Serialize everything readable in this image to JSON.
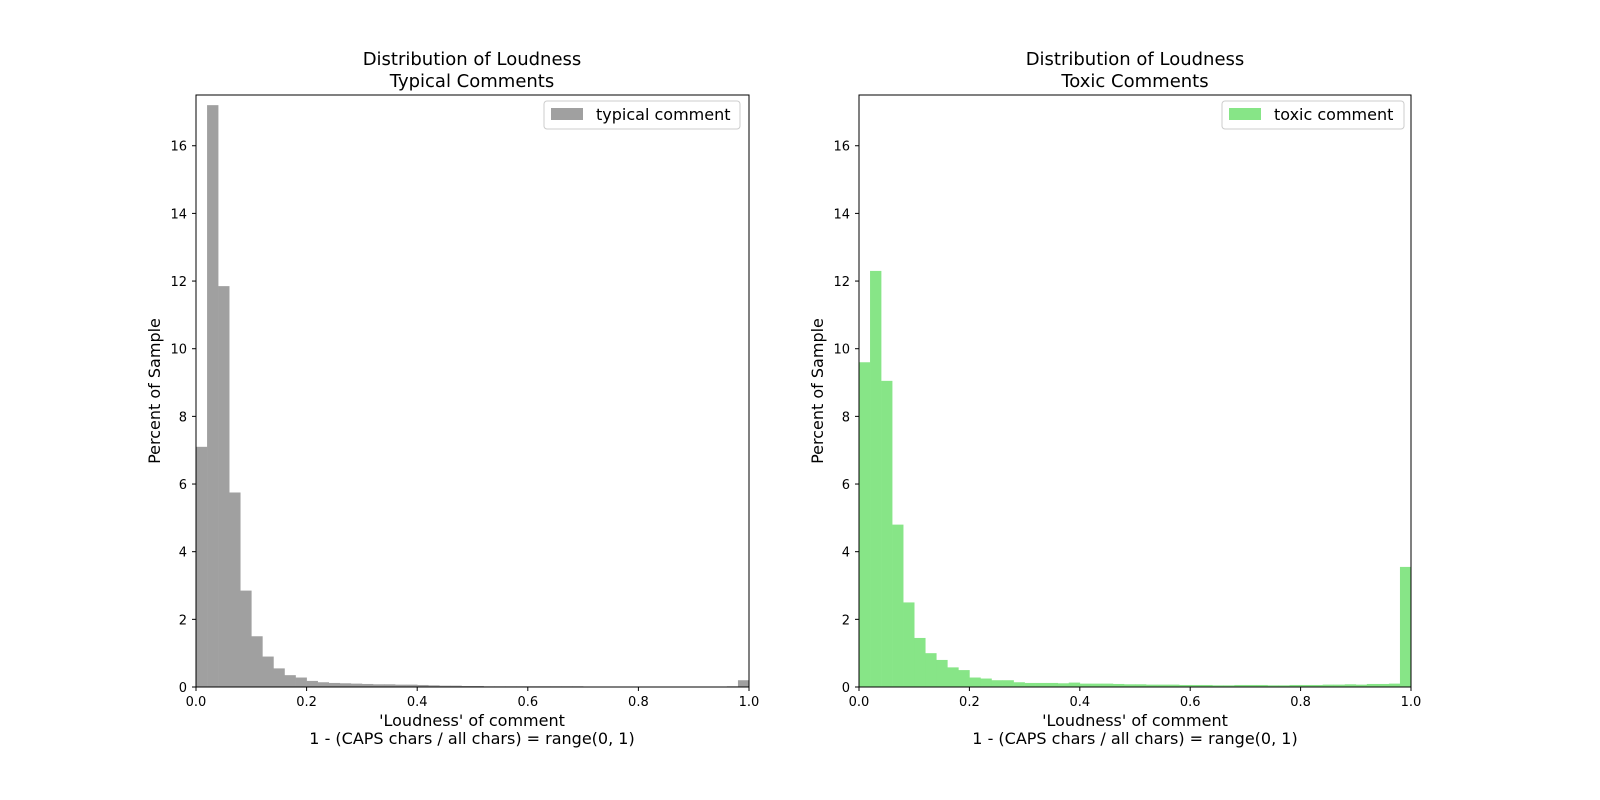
{
  "colors": {
    "typical": "#a0a0a0",
    "toxic": "#87e587",
    "axis": "#000000",
    "legend_border": "#cccccc"
  },
  "chart_data": [
    {
      "type": "bar",
      "title": "Distribution of Loudness\nTypical Comments",
      "xlabel": "'Loudness' of comment\n1 - (CAPS chars / all chars) = range(0, 1)",
      "ylabel": "Percent of Sample",
      "xlim": [
        0,
        1
      ],
      "ylim": [
        0,
        17.5
      ],
      "xticks": [
        "0.0",
        "0.2",
        "0.4",
        "0.6",
        "0.8",
        "1.0"
      ],
      "yticks": [
        "0",
        "2",
        "4",
        "6",
        "8",
        "10",
        "12",
        "14",
        "16"
      ],
      "grid": false,
      "legend_position": "top-right",
      "bin_width": 0.02,
      "series": [
        {
          "name": "typical comment",
          "color": "#a0a0a0",
          "values": [
            7.1,
            17.2,
            11.85,
            5.75,
            2.85,
            1.5,
            0.9,
            0.55,
            0.35,
            0.28,
            0.18,
            0.14,
            0.12,
            0.11,
            0.1,
            0.09,
            0.08,
            0.08,
            0.07,
            0.07,
            0.06,
            0.05,
            0.04,
            0.04,
            0.03,
            0.03,
            0.02,
            0.02,
            0.02,
            0.02,
            0.02,
            0.02,
            0.02,
            0.02,
            0.02,
            0.01,
            0.01,
            0.01,
            0.01,
            0.01,
            0.01,
            0.01,
            0.01,
            0.01,
            0.01,
            0.01,
            0.01,
            0.01,
            0.02,
            0.2
          ]
        }
      ]
    },
    {
      "type": "bar",
      "title": "Distribution of Loudness\nToxic Comments",
      "xlabel": "'Loudness' of comment\n1 - (CAPS chars / all chars) = range(0, 1)",
      "ylabel": "Percent of Sample",
      "xlim": [
        0,
        1
      ],
      "ylim": [
        0,
        17.5
      ],
      "xticks": [
        "0.0",
        "0.2",
        "0.4",
        "0.6",
        "0.8",
        "1.0"
      ],
      "yticks": [
        "0",
        "2",
        "4",
        "6",
        "8",
        "10",
        "12",
        "14",
        "16"
      ],
      "grid": false,
      "legend_position": "top-right",
      "bin_width": 0.02,
      "series": [
        {
          "name": "toxic comment",
          "color": "#87e587",
          "values": [
            9.6,
            12.3,
            9.05,
            4.8,
            2.5,
            1.45,
            1.0,
            0.8,
            0.58,
            0.5,
            0.28,
            0.25,
            0.2,
            0.2,
            0.14,
            0.12,
            0.12,
            0.12,
            0.11,
            0.13,
            0.1,
            0.1,
            0.1,
            0.09,
            0.08,
            0.08,
            0.07,
            0.07,
            0.07,
            0.06,
            0.06,
            0.06,
            0.05,
            0.05,
            0.06,
            0.06,
            0.06,
            0.05,
            0.05,
            0.06,
            0.06,
            0.06,
            0.07,
            0.07,
            0.08,
            0.07,
            0.09,
            0.09,
            0.1,
            3.55
          ]
        }
      ]
    }
  ]
}
